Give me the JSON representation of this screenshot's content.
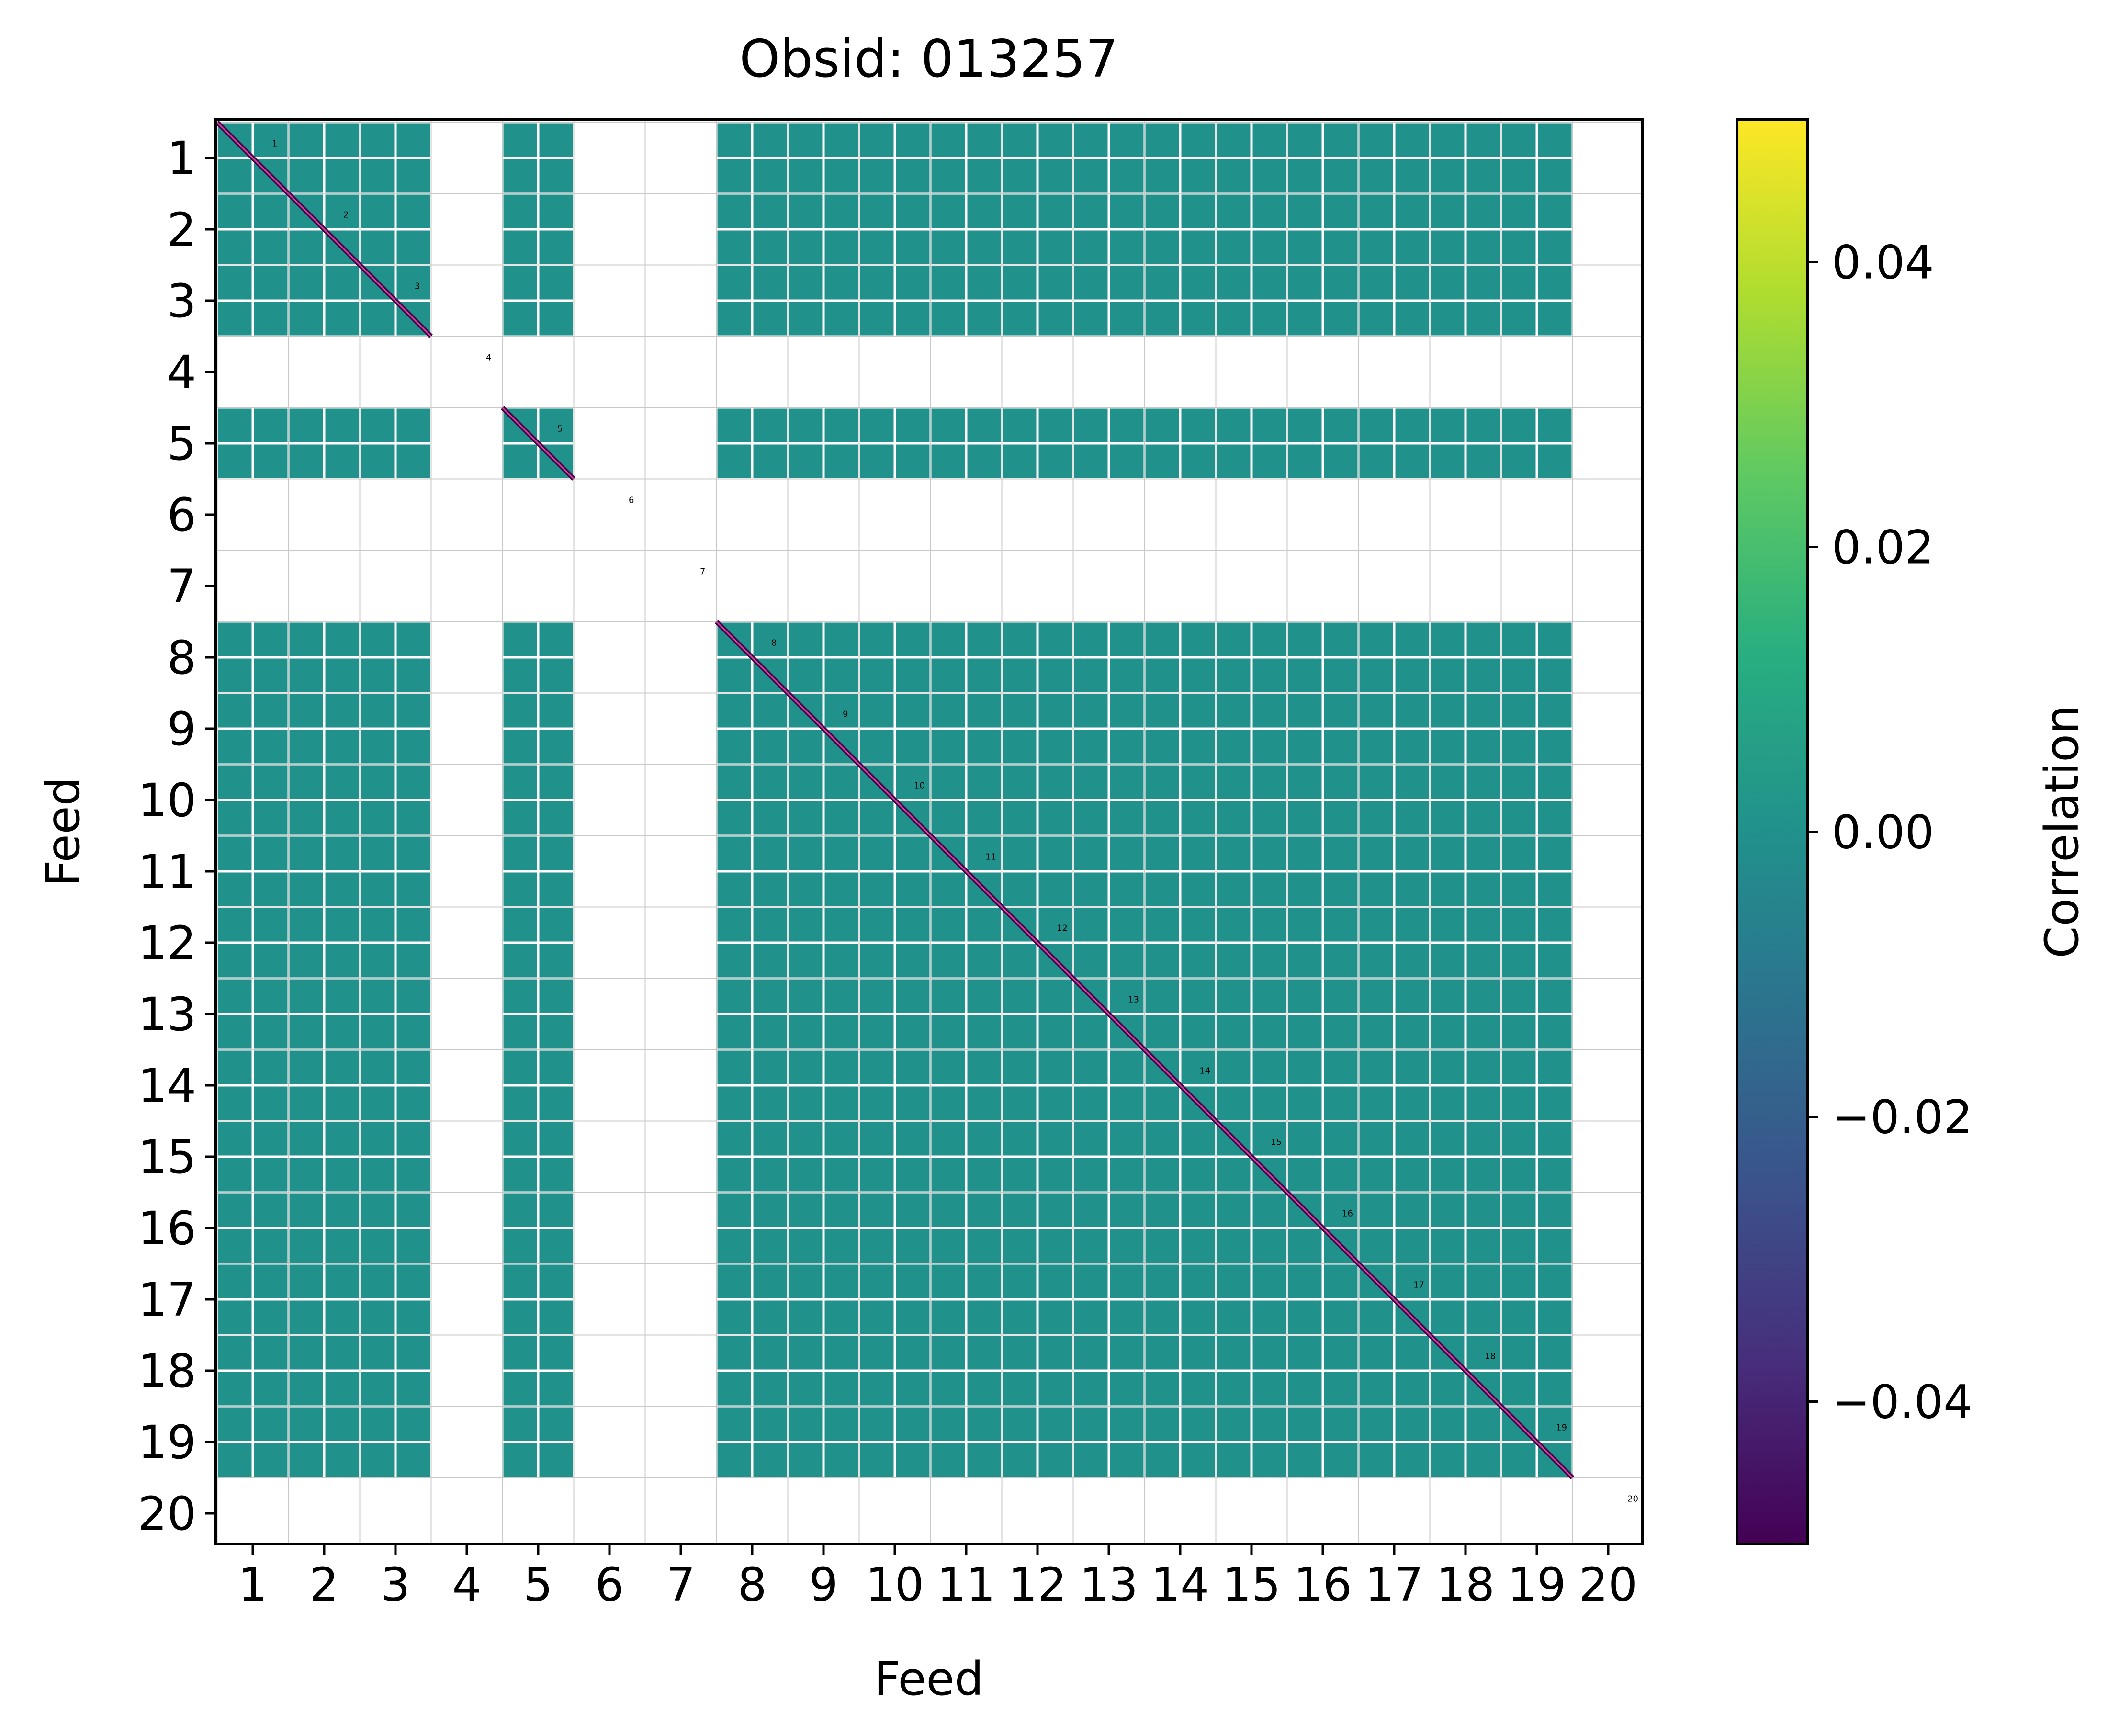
{
  "chart_data": {
    "type": "heatmap",
    "title": "Obsid: 013257",
    "xlabel": "Feed",
    "ylabel": "Feed",
    "colorbar_label": "Correlation",
    "feeds": [
      1,
      2,
      3,
      4,
      5,
      6,
      7,
      8,
      9,
      10,
      11,
      12,
      13,
      14,
      15,
      16,
      17,
      18,
      19,
      20
    ],
    "x_tick_labels": [
      "1",
      "2",
      "3",
      "4",
      "5",
      "6",
      "7",
      "8",
      "9",
      "10",
      "11",
      "12",
      "13",
      "14",
      "15",
      "16",
      "17",
      "18",
      "19",
      "20"
    ],
    "y_tick_labels": [
      "1",
      "2",
      "3",
      "4",
      "5",
      "6",
      "7",
      "8",
      "9",
      "10",
      "11",
      "12",
      "13",
      "14",
      "15",
      "16",
      "17",
      "18",
      "19",
      "20"
    ],
    "diagonal_labels": [
      "1",
      "2",
      "3",
      "4",
      "5",
      "6",
      "7",
      "8",
      "9",
      "10",
      "11",
      "12",
      "13",
      "14",
      "15",
      "16",
      "17",
      "18",
      "19",
      "20"
    ],
    "active_feeds": [
      1,
      2,
      3,
      5,
      8,
      9,
      10,
      11,
      12,
      13,
      14,
      15,
      16,
      17,
      18,
      19
    ],
    "empty_feeds": [
      4,
      6,
      7,
      20
    ],
    "off_diagonal_correlation": 0.0,
    "diagonal_correlation": -0.05,
    "colorbar_range": [
      -0.05,
      0.05
    ],
    "colorbar_ticks": [
      -0.04,
      -0.02,
      0.0,
      0.02,
      0.04
    ],
    "colorbar_tick_labels": [
      "−0.04",
      "−0.02",
      "0.00",
      "0.02",
      "0.04"
    ],
    "colormap": "viridis",
    "grid": true
  },
  "colors": {
    "cell": "#21918c",
    "diagonal": "#440154",
    "diagonal_line": "#d64b8a",
    "subgrid": "#ffffff",
    "gridline": "#c8c8c8",
    "axis": "#000000",
    "viridis_stops": [
      "#440154",
      "#472d7b",
      "#3b528b",
      "#2c728e",
      "#21918c",
      "#28ae80",
      "#5ec962",
      "#addc30",
      "#fde725"
    ]
  }
}
